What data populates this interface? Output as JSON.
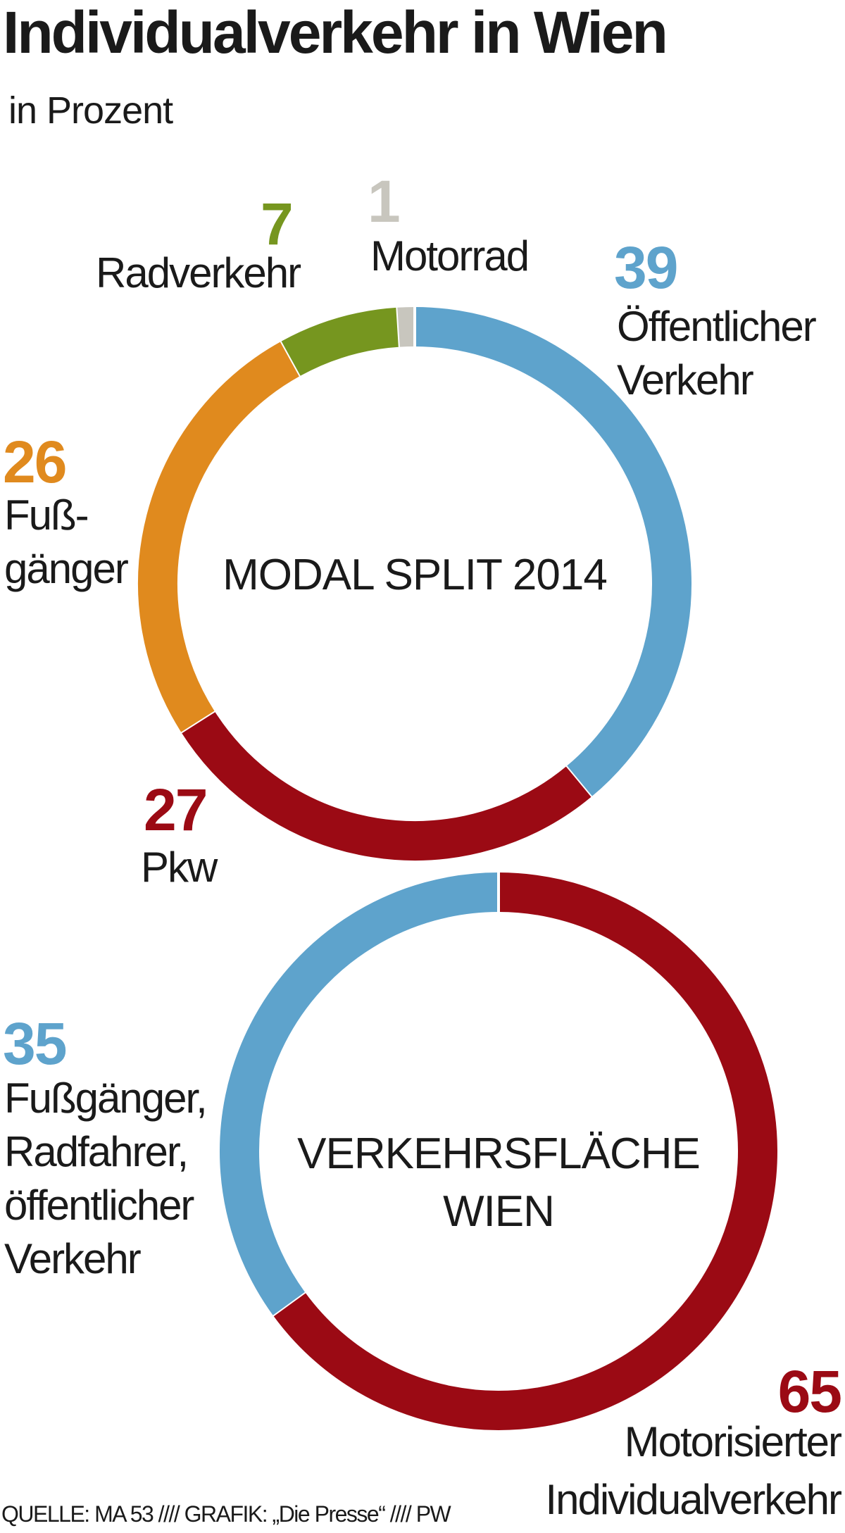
{
  "title": "Individualverkehr in Wien",
  "subtitle": "in Prozent",
  "footer": "QUELLE: MA 53  ////  GRAFIK: „Die Presse“  ////  PW",
  "chart_data": [
    {
      "type": "pie",
      "variant": "donut",
      "title": "MODAL SPLIT 2014",
      "start": "top",
      "direction": "clockwise",
      "slices": [
        {
          "label": "Öffentlicher Verkehr",
          "label_lines": [
            "Öffentlicher",
            "Verkehr"
          ],
          "value": 39,
          "color": "#5ea3cc"
        },
        {
          "label": "Pkw",
          "label_lines": [
            "Pkw"
          ],
          "value": 27,
          "color": "#9b0a14"
        },
        {
          "label": "Fußgänger",
          "label_lines": [
            "Fuß-",
            "gänger"
          ],
          "value": 26,
          "color": "#e08a1e"
        },
        {
          "label": "Radverkehr",
          "label_lines": [
            "Radverkehr"
          ],
          "value": 7,
          "color": "#76961f"
        },
        {
          "label": "Motorrad",
          "label_lines": [
            "Motorrad"
          ],
          "value": 1,
          "color": "#c8c6be"
        }
      ]
    },
    {
      "type": "pie",
      "variant": "donut",
      "title": "VERKEHRSFLÄCHE WIEN",
      "title_lines": [
        "VERKEHRSFLÄCHE",
        "WIEN"
      ],
      "start": "top",
      "direction": "clockwise",
      "slices": [
        {
          "label": "Motorisierter Individualverkehr",
          "label_lines": [
            "Motorisierter",
            "Individualverkehr"
          ],
          "value": 65,
          "color": "#9b0a14"
        },
        {
          "label": "Fußgänger, Radfahrer, öffentlicher Verkehr",
          "label_lines": [
            "Fußgänger,",
            "Radfahrer,",
            "öffentlicher",
            "Verkehr"
          ],
          "value": 35,
          "color": "#5ea3cc"
        }
      ]
    }
  ]
}
